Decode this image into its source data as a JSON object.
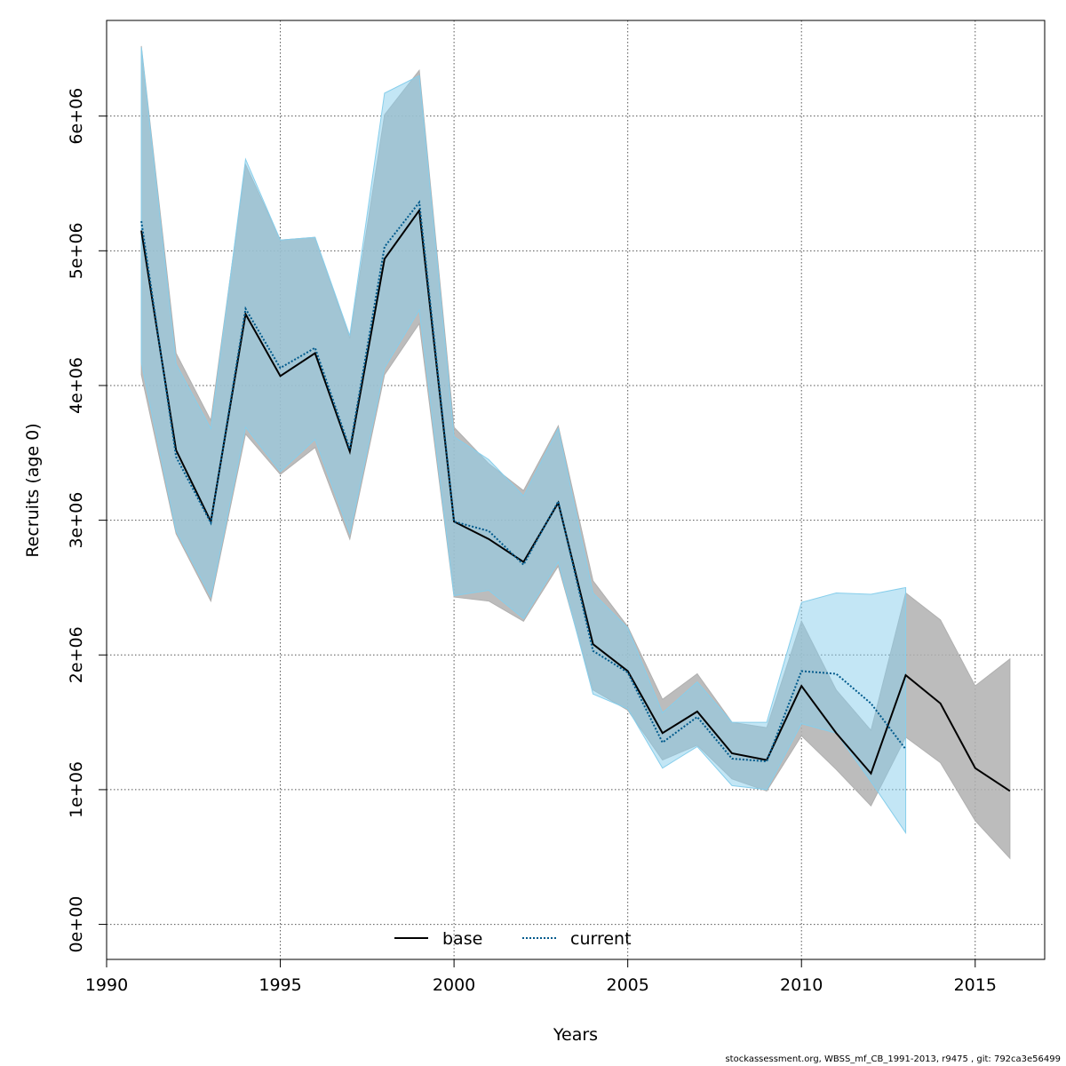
{
  "chart_data": {
    "type": "area",
    "xlabel": "Years",
    "ylabel": "Recruits (age 0)",
    "xlim": [
      1990,
      2017
    ],
    "ylim": [
      -260000,
      6710000
    ],
    "x_ticks": [
      1990,
      1995,
      2000,
      2005,
      2010,
      2015
    ],
    "y_ticks": [
      0,
      1000000,
      2000000,
      3000000,
      4000000,
      5000000,
      6000000
    ],
    "y_tick_labels": [
      "0e+00",
      "1e+06",
      "2e+06",
      "3e+06",
      "4e+06",
      "5e+06",
      "6e+06"
    ],
    "grid": true,
    "legend_position": "bottom-center",
    "series": [
      {
        "name": "base",
        "color": "#000000",
        "band_color": "#b0b0b0",
        "line_style": "solid",
        "x": [
          1991,
          1992,
          1993,
          1994,
          1995,
          1996,
          1997,
          1998,
          1999,
          2000,
          2001,
          2002,
          2003,
          2004,
          2005,
          2006,
          2007,
          2008,
          2009,
          2010,
          2011,
          2012,
          2013,
          2014,
          2015,
          2016
        ],
        "values": [
          5150000,
          3520000,
          2990000,
          4530000,
          4070000,
          4240000,
          3510000,
          4940000,
          5300000,
          2990000,
          2860000,
          2690000,
          3130000,
          2080000,
          1880000,
          1420000,
          1580000,
          1270000,
          1220000,
          1770000,
          1420000,
          1120000,
          1850000,
          1640000,
          1160000,
          990000
        ],
        "lower": [
          4080000,
          2900000,
          2400000,
          3640000,
          3340000,
          3540000,
          2860000,
          4080000,
          4460000,
          2430000,
          2400000,
          2250000,
          2660000,
          1740000,
          1590000,
          1220000,
          1330000,
          1080000,
          990000,
          1400000,
          1150000,
          880000,
          1390000,
          1200000,
          770000,
          490000
        ],
        "upper": [
          6520000,
          4240000,
          3740000,
          5640000,
          5080000,
          5100000,
          4350000,
          6010000,
          6340000,
          3690000,
          3420000,
          3220000,
          3700000,
          2550000,
          2210000,
          1670000,
          1860000,
          1500000,
          1460000,
          2250000,
          1740000,
          1440000,
          2460000,
          2260000,
          1770000,
          1970000
        ]
      },
      {
        "name": "current",
        "color": "#005a8c",
        "band_color": "#87ceeb",
        "line_style": "dotted",
        "x": [
          1991,
          1992,
          1993,
          1994,
          1995,
          1996,
          1997,
          1998,
          1999,
          2000,
          2001,
          2002,
          2003,
          2004,
          2005,
          2006,
          2007,
          2008,
          2009,
          2010,
          2011,
          2012,
          2013
        ],
        "values": [
          5220000,
          3470000,
          2980000,
          4570000,
          4130000,
          4280000,
          3530000,
          5030000,
          5360000,
          2990000,
          2920000,
          2670000,
          3140000,
          2030000,
          1870000,
          1350000,
          1540000,
          1230000,
          1210000,
          1880000,
          1860000,
          1640000,
          1300000
        ],
        "lower": [
          4170000,
          2920000,
          2430000,
          3690000,
          3360000,
          3600000,
          2900000,
          4130000,
          4560000,
          2440000,
          2480000,
          2270000,
          2690000,
          1710000,
          1600000,
          1160000,
          1320000,
          1030000,
          1000000,
          1490000,
          1420000,
          1060000,
          680000
        ],
        "upper": [
          6510000,
          4160000,
          3680000,
          5680000,
          5080000,
          5100000,
          4370000,
          6170000,
          6300000,
          3620000,
          3450000,
          3180000,
          3680000,
          2460000,
          2200000,
          1570000,
          1800000,
          1500000,
          1500000,
          2390000,
          2460000,
          2450000,
          2500000
        ]
      }
    ],
    "footer": "stockassessment.org, WBSS_mf_CB_1991-2013, r9475 , git: 792ca3e56499"
  }
}
